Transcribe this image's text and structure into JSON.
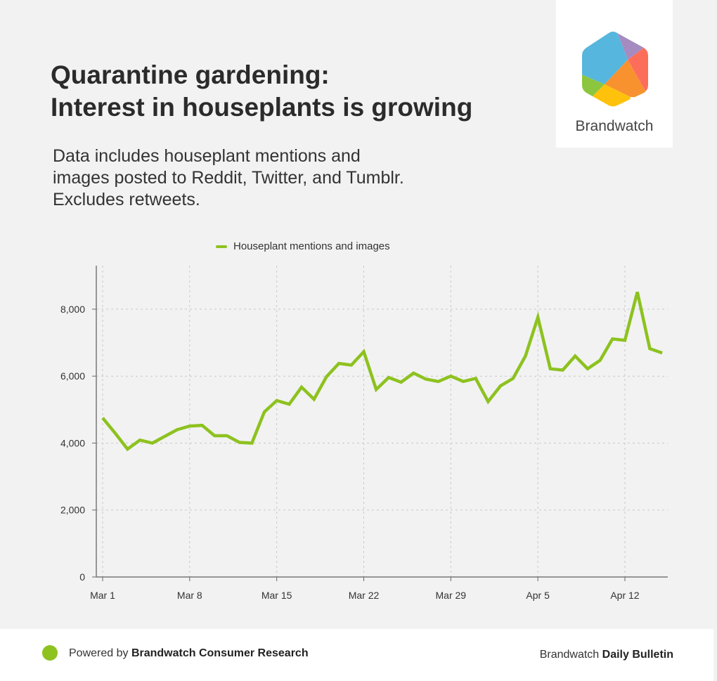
{
  "header": {
    "title_line1": "Quarantine gardening:",
    "title_line2": "Interest in houseplants is growing",
    "subtitle_lines": [
      "Data includes houseplant mentions and",
      "images posted to Reddit, Twitter, and Tumblr.",
      "Excludes retweets."
    ]
  },
  "logo": {
    "name": "Brandwatch",
    "colors": [
      "#56b6dd",
      "#a58bbf",
      "#fd6e5a",
      "#f7922f",
      "#fec20c",
      "#8cc63f"
    ]
  },
  "footer": {
    "powered_prefix": "Powered by",
    "powered_brand": "Brandwatch Consumer Research",
    "bulletin_prefix": "Brandwatch",
    "bulletin_name": "Daily Bulletin"
  },
  "chart_data": {
    "type": "line",
    "title": "",
    "xlabel": "",
    "ylabel": "",
    "ylim": [
      0,
      9300
    ],
    "grid": true,
    "legend_placement": "top",
    "yticks": [
      0,
      2000,
      4000,
      6000,
      8000
    ],
    "ytick_labels": [
      "0",
      "2,000",
      "4,000",
      "6,000",
      "8,000"
    ],
    "xtick_labels": [
      "Mar 1",
      "Mar 8",
      "Mar 15",
      "Mar 22",
      "Mar 29",
      "Apr 5",
      "Apr 12"
    ],
    "x_start": "Mar 1",
    "x_end": "Apr 15",
    "series": [
      {
        "name": "Houseplant mentions and images",
        "color": "#8dc21f",
        "values": [
          4750,
          4300,
          3820,
          4090,
          4000,
          4200,
          4400,
          4510,
          4530,
          4220,
          4220,
          4020,
          4000,
          4930,
          5270,
          5160,
          5670,
          5310,
          5980,
          6380,
          6330,
          6730,
          5600,
          5960,
          5820,
          6090,
          5910,
          5840,
          6000,
          5840,
          5930,
          5240,
          5710,
          5930,
          6600,
          7760,
          6220,
          6180,
          6600,
          6220,
          6470,
          7110,
          7070,
          8510,
          6820,
          6690
        ]
      }
    ]
  }
}
